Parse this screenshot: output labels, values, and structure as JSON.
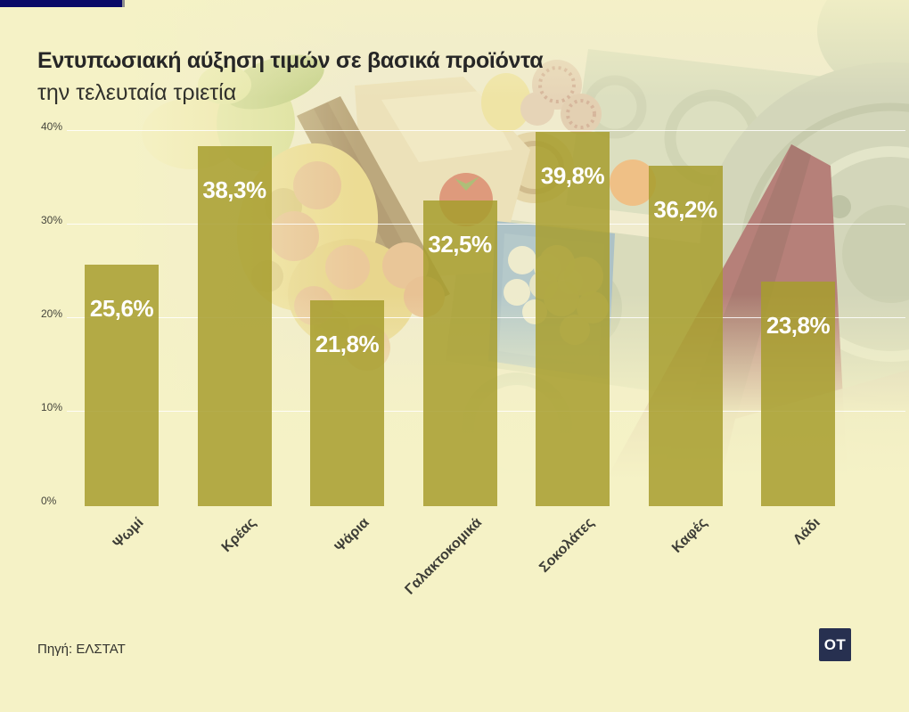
{
  "header": {
    "title": "Εντυπωσιακή αύξηση τιμών σε βασικά προϊόντα",
    "subtitle": "την τελευταία τριετία"
  },
  "footer": {
    "source": "Πηγή: ΕΛΣΤΑΤ",
    "logo_text": "OT"
  },
  "colors": {
    "background": "#f5f2c6",
    "bar_fill": "rgba(167,158,46,0.85)",
    "bar_label_text": "#ffffff",
    "gridline": "rgba(255,255,255,0.85)",
    "title_text": "#262626",
    "axis_text": "#45453c",
    "top_bar_navy": "#0a0a68",
    "logo_navy": "#273050",
    "arrow_red": "#8c3546"
  },
  "chart_data": {
    "type": "bar",
    "title": "Εντυπωσιακή αύξηση τιμών σε βασικά προϊόντα",
    "subtitle": "την τελευταία τριετία",
    "categories": [
      "Ψωμί",
      "Κρέας",
      "Ψάρια",
      "Γαλακτοκομικά",
      "Σοκολάτες",
      "Καφές",
      "Λάδι"
    ],
    "values": [
      25.6,
      38.3,
      21.8,
      32.5,
      39.8,
      36.2,
      23.8
    ],
    "value_labels": [
      "25,6%",
      "38,3%",
      "21,8%",
      "32,5%",
      "39,8%",
      "36,2%",
      "23,8%"
    ],
    "ylabel": "",
    "xlabel": "",
    "ylim": [
      0,
      40
    ],
    "yticks": [
      {
        "value": 0,
        "label": "0%"
      },
      {
        "value": 10,
        "label": "10%"
      },
      {
        "value": 20,
        "label": "20%"
      },
      {
        "value": 30,
        "label": "30%"
      },
      {
        "value": 40,
        "label": "40%"
      }
    ],
    "grid": true,
    "legend": false,
    "source": "ΕΛΣΤΑΤ"
  }
}
